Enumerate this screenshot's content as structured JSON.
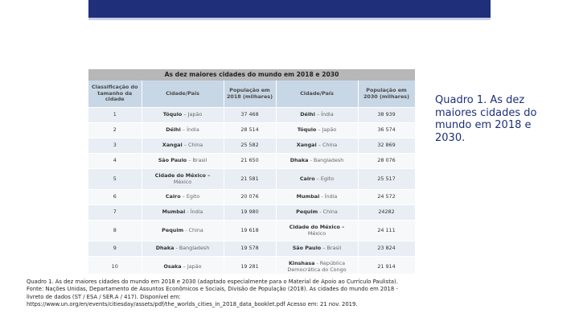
{
  "side_caption": "Quadro 1. As dez maiores cidades do mundo em 2018 e 2030.",
  "table": {
    "title": "As dez maiores cidades do mundo em 2018 e 2030",
    "headers": [
      "Classificação do tamanho da cidade",
      "Cidade/País",
      "População em 2018 (milhares)",
      "Cidade/País",
      "População em 2030 (milhares)"
    ],
    "rows": [
      {
        "rank": "1",
        "city2018": "Tóquio",
        "country2018": "– Japão",
        "pop2018": "37 468",
        "city2030": "Délhi",
        "country2030": "– Índia",
        "pop2030": "38 939"
      },
      {
        "rank": "2",
        "city2018": "Délhi",
        "country2018": "– Índia",
        "pop2018": "28 514",
        "city2030": "Tóquio",
        "country2030": "– Japão",
        "pop2030": "36 574"
      },
      {
        "rank": "3",
        "city2018": "Xangai",
        "country2018": "– China",
        "pop2018": "25 582",
        "city2030": "Xangai",
        "country2030": "– China",
        "pop2030": "32 869"
      },
      {
        "rank": "4",
        "city2018": "São Paulo",
        "country2018": "– Brasil",
        "pop2018": "21 650",
        "city2030": "Dhaka",
        "country2030": "- Bangladesh",
        "pop2030": "28 076"
      },
      {
        "rank": "5",
        "city2018": "Cidade do México –",
        "country2018": "México",
        "pop2018": "21 581",
        "city2030": "Cairo",
        "country2030": "– Egito",
        "pop2030": "25 517"
      },
      {
        "rank": "6",
        "city2018": "Cairo",
        "country2018": "– Egito",
        "pop2018": "20 076",
        "city2030": "Mumbai",
        "country2030": "- Índia",
        "pop2030": "24 572"
      },
      {
        "rank": "7",
        "city2018": "Mumbai",
        "country2018": "- Índia",
        "pop2018": "19 980",
        "city2030": "Pequim",
        "country2030": "- China",
        "pop2030": "24282"
      },
      {
        "rank": "8",
        "city2018": "Pequim",
        "country2018": "- China",
        "pop2018": "19 618",
        "city2030": "Cidade do México –",
        "country2030": "México",
        "pop2030": "24 111"
      },
      {
        "rank": "9",
        "city2018": "Dhaka",
        "country2018": "- Bangladesh",
        "pop2018": "19 578",
        "city2030": "São Paulo",
        "country2030": "– Brasil",
        "pop2030": "23 824"
      },
      {
        "rank": "10",
        "city2018": "Osaka",
        "country2018": "– Japão",
        "pop2018": "19 281",
        "city2030": "Kinshasa",
        "country2030": "- República Democrática do Congo",
        "pop2030": "21 914"
      }
    ]
  },
  "bottom_caption": "Quadro 1. As dez maiores cidades do mundo em 2018 e 2030 (adaptado especialmente para o Material de Apoio ao Currículo Paulista). Fonte: Nações Unidas, Departamento de Assuntos Econômicos e Sociais, Divisão de População (2018). As cidades do mundo em 2018 - livreto de dados (ST / ESA / SER.A / 417). Disponível em: https://www.un.org/en/events/citiesday/assets/pdf/the_worlds_cities_in_2018_data_booklet.pdf Acesso em: 21 nov. 2019."
}
